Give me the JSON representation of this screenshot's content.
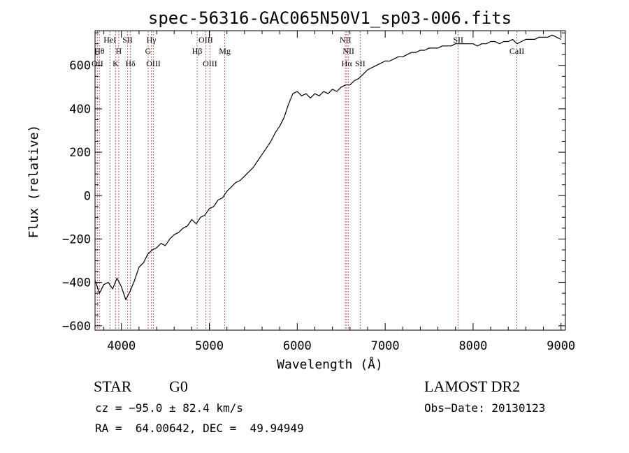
{
  "chart_data": {
    "type": "line",
    "title": "spec-56316-GAC065N50V1_sp03-006.fits",
    "xlabel": "Wavelength (Å)",
    "ylabel": "Flux (relative)",
    "xlim": [
      3700,
      9050
    ],
    "ylim": [
      -620,
      760
    ],
    "xticks": [
      4000,
      5000,
      6000,
      7000,
      8000,
      9000
    ],
    "xtick_labels": [
      "4000",
      "5000",
      "6000",
      "7000",
      "8000",
      "9000"
    ],
    "yticks": [
      -600,
      -400,
      -200,
      0,
      200,
      400,
      600
    ],
    "ytick_labels": [
      "−600",
      "−400",
      "−200",
      "0",
      "200",
      "400",
      "600"
    ],
    "grid": false,
    "series": [
      {
        "color": "#000000",
        "x": [
          3700,
          3750,
          3800,
          3850,
          3900,
          3950,
          4000,
          4050,
          4100,
          4150,
          4200,
          4250,
          4300,
          4350,
          4400,
          4450,
          4500,
          4550,
          4600,
          4650,
          4700,
          4750,
          4800,
          4850,
          4900,
          4950,
          5000,
          5050,
          5100,
          5150,
          5200,
          5250,
          5300,
          5350,
          5400,
          5450,
          5500,
          5550,
          5600,
          5650,
          5700,
          5750,
          5800,
          5850,
          5900,
          5950,
          6000,
          6050,
          6100,
          6150,
          6200,
          6250,
          6300,
          6350,
          6400,
          6450,
          6500,
          6550,
          6600,
          6650,
          6700,
          6750,
          6800,
          6850,
          6900,
          6950,
          7000,
          7050,
          7100,
          7150,
          7200,
          7250,
          7300,
          7350,
          7400,
          7450,
          7500,
          7550,
          7600,
          7650,
          7700,
          7750,
          7800,
          7850,
          7900,
          7950,
          8000,
          8050,
          8100,
          8150,
          8200,
          8250,
          8300,
          8350,
          8400,
          8450,
          8500,
          8550,
          8600,
          8650,
          8700,
          8750,
          8800,
          8850,
          8900,
          8950,
          9000
        ],
        "y": [
          -390,
          -450,
          -410,
          -400,
          -430,
          -380,
          -420,
          -480,
          -440,
          -390,
          -330,
          -310,
          -270,
          -250,
          -240,
          -220,
          -230,
          -200,
          -180,
          -170,
          -150,
          -140,
          -110,
          -130,
          -100,
          -90,
          -60,
          -50,
          -20,
          -10,
          20,
          40,
          60,
          70,
          90,
          110,
          130,
          160,
          190,
          220,
          250,
          290,
          320,
          360,
          420,
          470,
          480,
          460,
          470,
          450,
          470,
          460,
          480,
          470,
          490,
          480,
          500,
          510,
          510,
          530,
          540,
          560,
          580,
          590,
          600,
          610,
          620,
          620,
          630,
          640,
          640,
          650,
          660,
          660,
          670,
          670,
          680,
          680,
          680,
          690,
          690,
          690,
          700,
          700,
          700,
          700,
          700,
          690,
          700,
          700,
          710,
          710,
          700,
          710,
          710,
          720,
          700,
          710,
          720,
          720,
          720,
          730,
          730,
          730,
          740,
          730,
          720
        ]
      }
    ],
    "lines": [
      {
        "x": 3727,
        "label": "OII",
        "row": 3
      },
      {
        "x": 3750,
        "label": "Hθ",
        "row": 2
      },
      {
        "x": 3869,
        "label": "HeI",
        "row": 1
      },
      {
        "x": 3934,
        "label": "K",
        "row": 3
      },
      {
        "x": 3969,
        "label": "H",
        "row": 2
      },
      {
        "x": 4070,
        "label": "SII",
        "row": 1
      },
      {
        "x": 4102,
        "label": "Hδ",
        "row": 3
      },
      {
        "x": 4304,
        "label": "G",
        "row": 2
      },
      {
        "x": 4341,
        "label": "Hγ",
        "row": 1
      },
      {
        "x": 4363,
        "label": "OIII",
        "row": 3
      },
      {
        "x": 4861,
        "label": "Hβ",
        "row": 2
      },
      {
        "x": 4959,
        "label": "OIII",
        "row": 1
      },
      {
        "x": 5007,
        "label": "OIII",
        "row": 3
      },
      {
        "x": 5175,
        "label": "Mg",
        "row": 2
      },
      {
        "x": 6548,
        "label": "NII",
        "row": 1
      },
      {
        "x": 6563,
        "label": "Hα",
        "row": 3
      },
      {
        "x": 6583,
        "label": "NII",
        "row": 2
      },
      {
        "x": 6716,
        "label": "SII",
        "row": 3
      },
      {
        "x": 7831,
        "label": "SII",
        "row": 1
      },
      {
        "x": 8498,
        "label": "CaII",
        "row": 2
      }
    ]
  },
  "footer": {
    "class_label": "STAR",
    "subclass": "G0",
    "survey": "LAMOST DR2",
    "cz": "cz = −95.0 ± 82.4 km/s",
    "obs_date": "Obs−Date: 20130123",
    "coords": "RA =  64.00642, DEC =  49.94949"
  }
}
